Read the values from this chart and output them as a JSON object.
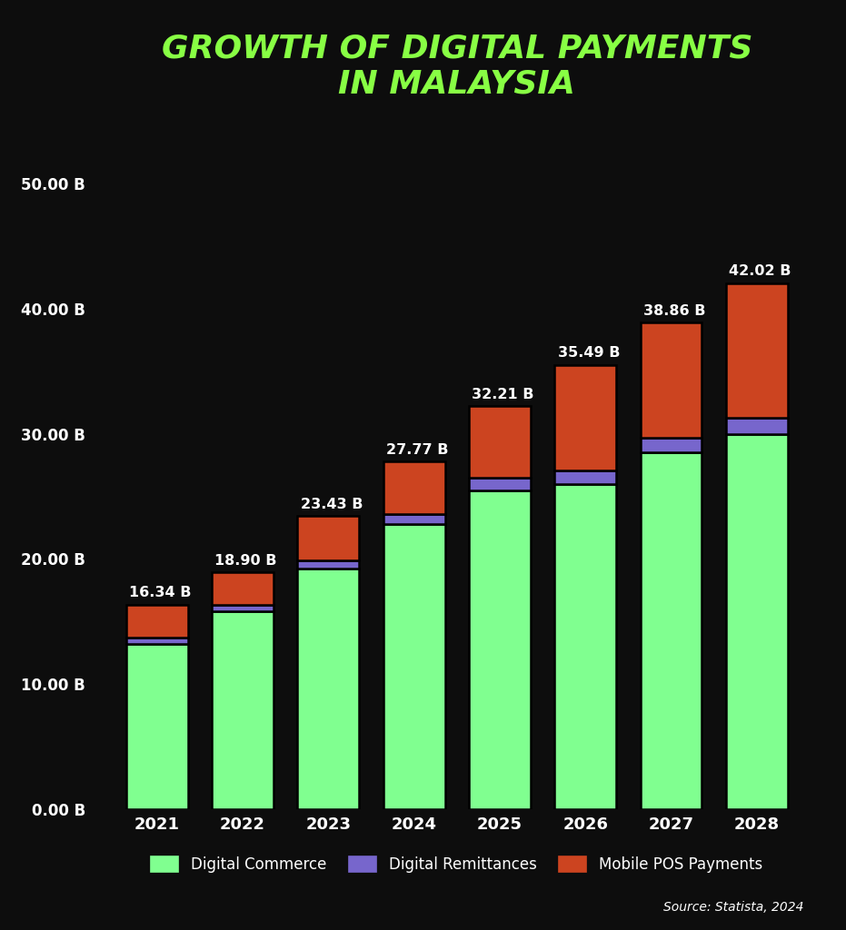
{
  "years": [
    "2021",
    "2022",
    "2023",
    "2024",
    "2025",
    "2026",
    "2027",
    "2028"
  ],
  "totals": [
    16.34,
    18.9,
    23.43,
    27.77,
    32.21,
    35.49,
    38.86,
    42.02
  ],
  "digital_commerce": [
    13.2,
    15.8,
    19.2,
    22.8,
    25.5,
    26.0,
    28.5,
    30.0
  ],
  "digital_remittances": [
    0.5,
    0.55,
    0.65,
    0.75,
    0.95,
    1.05,
    1.15,
    1.25
  ],
  "mobile_pos": [
    2.64,
    2.55,
    3.58,
    4.22,
    5.76,
    8.44,
    9.21,
    10.77
  ],
  "color_commerce": "#80FF90",
  "color_remittances": "#7766CC",
  "color_pos": "#CC4420",
  "color_bg": "#0D0D0D",
  "color_title": "#88FF44",
  "color_text": "#FFFFFF",
  "color_bar_edge": "#000000",
  "title_line1": "GROWTH OF DIGITAL PAYMENTS",
  "title_line2": "IN MALAYSIA",
  "legend_commerce": "Digital Commerce",
  "legend_remittances": "Digital Remittances",
  "legend_pos": "Mobile POS Payments",
  "source": "Source: Statista, 2024",
  "ylim": [
    0,
    55
  ],
  "yticks": [
    0,
    10,
    20,
    30,
    40,
    50
  ],
  "ytick_labels": [
    "0.00 B",
    "10.00 B",
    "20.00 B",
    "30.00 B",
    "40.00 B",
    "50.00 B"
  ]
}
